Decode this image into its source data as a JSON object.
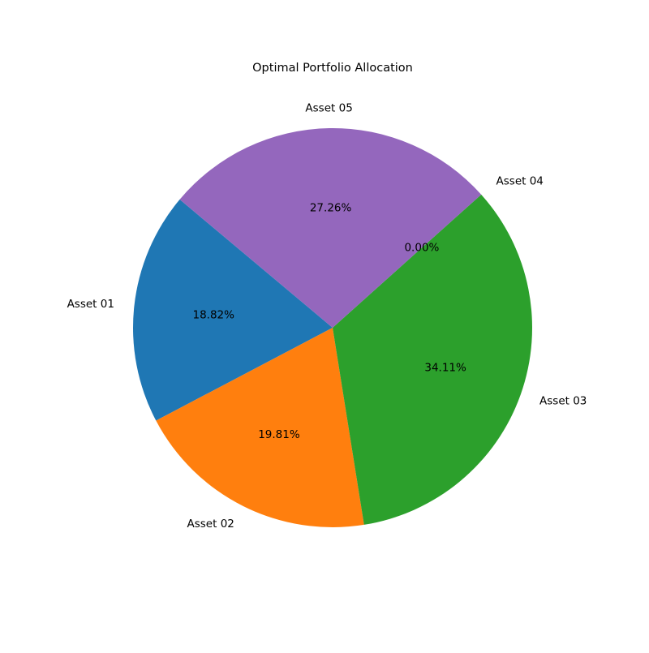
{
  "chart_data": {
    "type": "pie",
    "title": "Optimal Portfolio Allocation",
    "categories": [
      "Asset 01",
      "Asset 02",
      "Asset 03",
      "Asset 04",
      "Asset 05"
    ],
    "values": [
      18.82,
      19.81,
      34.11,
      0.0,
      27.26
    ],
    "value_labels": [
      "18.82%",
      "19.81%",
      "34.11%",
      "0.00%",
      "27.26%"
    ],
    "colors": [
      "#1f77b4",
      "#ff7f0e",
      "#2ca02c",
      "#d62728",
      "#9467bd"
    ],
    "start_angle_deg": 140,
    "direction": "counterclockwise",
    "legend": "none"
  }
}
